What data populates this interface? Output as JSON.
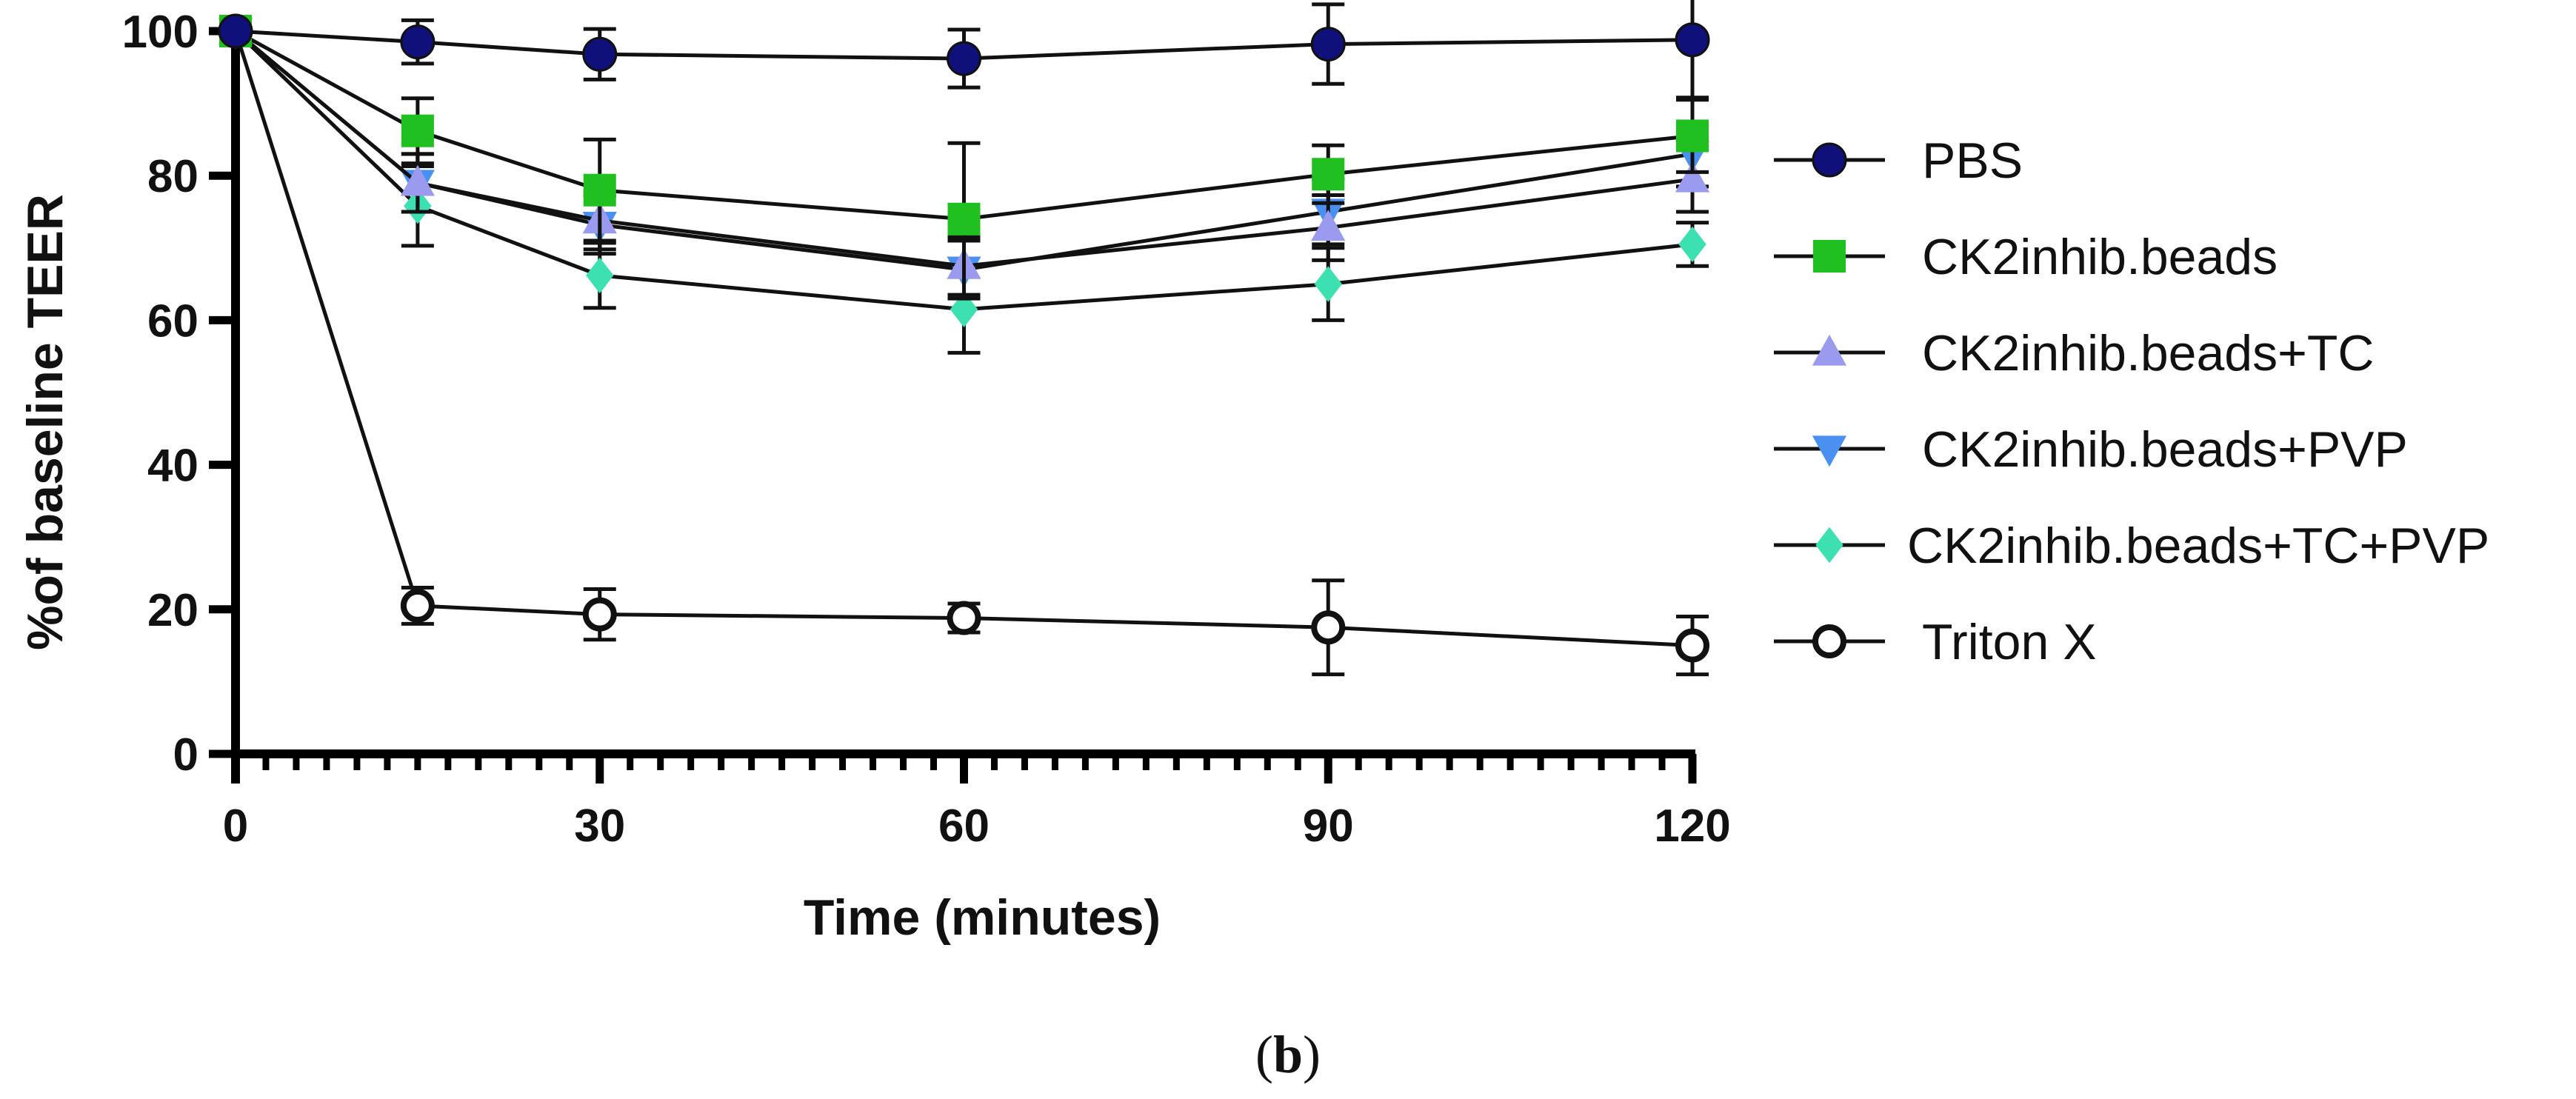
{
  "chart_data": {
    "type": "line",
    "title": "",
    "xlabel": "Time (minutes)",
    "ylabel": "%of baseline TEER",
    "xlim": [
      0,
      120
    ],
    "ylim": [
      0,
      100
    ],
    "xticks": [
      0,
      30,
      60,
      90,
      120
    ],
    "yticks": [
      0,
      20,
      40,
      60,
      80,
      100
    ],
    "x_minor_step": 2.5,
    "x": [
      0,
      15,
      30,
      60,
      90,
      120
    ],
    "legend_position": "right",
    "series": [
      {
        "name": "PBS",
        "marker": "circle",
        "color": "#10107a",
        "values": [
          100,
          98.5,
          96.8,
          96.2,
          98.2,
          98.8
        ],
        "errors": [
          0,
          3.0,
          3.5,
          4.0,
          5.5,
          8.0
        ]
      },
      {
        "name": "CK2inhib.beads",
        "marker": "square",
        "color": "#1fc01f",
        "values": [
          100,
          86.2,
          78.0,
          74.0,
          80.2,
          85.5
        ],
        "errors": [
          0,
          4.5,
          7.0,
          10.5,
          4.0,
          5.0
        ]
      },
      {
        "name": "CK2inhib.beads+TC",
        "marker": "triangle-up",
        "color": "#9a9aee",
        "values": [
          100,
          79.0,
          73.8,
          67.5,
          72.8,
          79.5
        ],
        "errors": [
          0,
          4.0,
          4.0,
          4.0,
          4.5,
          4.5
        ]
      },
      {
        "name": "CK2inhib.beads+PVP",
        "marker": "triangle-down",
        "color": "#4a90f0",
        "values": [
          100,
          79.0,
          73.2,
          67.0,
          75.0,
          83.0
        ],
        "errors": [
          0,
          4.0,
          4.0,
          4.0,
          4.5,
          4.5
        ]
      },
      {
        "name": "CK2inhib.beads+TC+PVP",
        "marker": "diamond",
        "color": "#3de0b0",
        "values": [
          100,
          75.8,
          66.2,
          61.5,
          65.0,
          70.5
        ],
        "errors": [
          0,
          5.5,
          4.5,
          6.0,
          5.0,
          3.0
        ]
      },
      {
        "name": "Triton X",
        "marker": "circle-open",
        "color": "#111111",
        "values": [
          100,
          20.5,
          19.3,
          18.8,
          17.5,
          15.0
        ],
        "errors": [
          0,
          2.5,
          3.5,
          2.0,
          6.5,
          4.0
        ]
      }
    ]
  },
  "caption": {
    "open": "(",
    "label": "b",
    "close": ")"
  }
}
